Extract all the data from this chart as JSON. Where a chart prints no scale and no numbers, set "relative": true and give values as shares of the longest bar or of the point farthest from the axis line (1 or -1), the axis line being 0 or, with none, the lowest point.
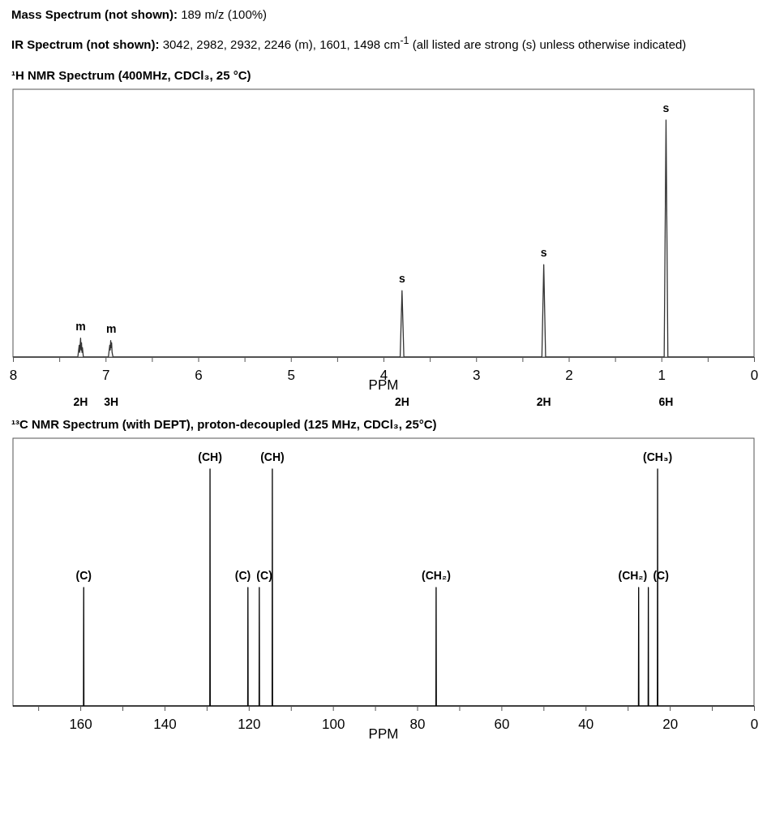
{
  "chart_data": [
    {
      "type": "line",
      "title": "¹H NMR Spectrum (400MHz, CDCl₃, 25 °C)",
      "xlabel": "PPM",
      "relative": true,
      "xlim": [
        8,
        0
      ],
      "xticks": [
        8,
        {
          "value": 7.5,
          "label": null
        },
        7,
        {
          "value": 6.5,
          "label": null
        },
        6,
        {
          "value": 5.5,
          "label": null
        },
        5,
        {
          "value": 4.5,
          "label": null
        },
        4,
        {
          "value": 3.5,
          "label": null
        },
        3,
        {
          "value": 2.5,
          "label": null
        },
        2,
        {
          "value": 1.5,
          "label": null
        },
        1,
        {
          "value": 0.5,
          "label": null
        },
        0
      ],
      "grid": false,
      "series": [
        {
          "color": "#333333",
          "x": [
            8,
            7.3,
            7.285,
            7.28,
            7.27,
            7.265,
            7.26,
            7.255,
            7.25,
            7.24,
            6.97,
            6.955,
            6.95,
            6.945,
            6.94,
            6.935,
            6.93,
            6.92,
            3.82,
            3.8,
            3.78,
            2.29,
            2.27,
            2.25,
            0.97,
            0.95,
            0.93,
            0
          ],
          "values": [
            0,
            0,
            0.05,
            0.02,
            0.08,
            0.03,
            0.06,
            0.02,
            0.04,
            0,
            0,
            0.05,
            0.03,
            0.07,
            0.04,
            0.06,
            0.02,
            0,
            0,
            0.28,
            0,
            0,
            0.39,
            0,
            0,
            1,
            0,
            0
          ]
        }
      ],
      "annotations": [
        "Mass Spectrum (not shown): 189 m/z (100%)",
        "IR Spectrum (not shown):  3042, 2982, 2932, 2246 (m), 1601, 1498 cm$^{-1}$ (all listed are strong (s) unless otherwise indicated)",
        {
          "text": "m",
          "x": 7.27,
          "y": 0.08
        },
        {
          "text": "m",
          "x": 6.94,
          "y": 0.07
        },
        {
          "text": "s",
          "x": 3.8,
          "y": 0.28
        },
        {
          "text": "s",
          "x": 2.27,
          "y": 0.39
        },
        {
          "text": "s",
          "x": 0.95,
          "y": 1
        },
        "2H",
        "3H",
        "2H",
        "2H",
        "6H"
      ]
    },
    {
      "type": "line",
      "title": "¹³C NMR Spectrum (with DEPT), proton-decoupled (125 MHz, CDCl₃, 25°C)",
      "xlabel": "PPM",
      "relative": true,
      "xlim": [
        176,
        0
      ],
      "xticks": [
        {
          "value": 170,
          "label": null
        },
        160,
        {
          "value": 150,
          "label": null
        },
        140,
        {
          "value": 130,
          "label": null
        },
        120,
        {
          "value": 110,
          "label": null
        },
        100,
        {
          "value": 90,
          "label": null
        },
        80,
        {
          "value": 70,
          "label": null
        },
        60,
        {
          "value": 50,
          "label": null
        },
        40,
        {
          "value": 30,
          "label": null
        },
        20,
        {
          "value": 10,
          "label": null
        },
        0
      ],
      "grid": false,
      "series": [
        {
          "color": "#000000",
          "x": [
            176,
            159.25,
            159.2,
            159.15,
            129.25,
            129.2,
            129.15,
            120.25,
            120.2,
            120.15,
            117.55,
            117.5,
            117.45,
            114.45,
            114.4,
            114.35,
            75.55,
            75.5,
            75.45,
            27.45,
            27.4,
            27.35,
            25.15,
            25.1,
            25.05,
            22.95,
            22.9,
            22.85,
            0
          ],
          "values": [
            0,
            0,
            0.5,
            0,
            0,
            1,
            0,
            0,
            0.5,
            0,
            0,
            0.5,
            0,
            0,
            1,
            0,
            0,
            0.5,
            0,
            0,
            0.5,
            0,
            0,
            0.5,
            0,
            0,
            1,
            0,
            0
          ]
        }
      ],
      "annotations": [
        {
          "text": "(C)",
          "x": 159.2,
          "y": 0.5
        },
        {
          "text": "(CH)",
          "x": 129.2,
          "y": 1
        },
        {
          "text": "(C)",
          "x": 120.2,
          "y": 0.5
        },
        {
          "text": "(C)",
          "x": 117.5,
          "y": 0.5
        },
        {
          "text": "(CH)",
          "x": 114.4,
          "y": 1
        },
        {
          "text": "(CH₂)",
          "x": 75.5,
          "y": 0.5
        },
        {
          "text": "(CH₂)",
          "x": 27.4,
          "y": 0.5
        },
        {
          "text": "(C)",
          "x": 25.1,
          "y": 0.5
        },
        {
          "text": "(CH₃)",
          "x": 22.9,
          "y": 1
        }
      ]
    }
  ]
}
